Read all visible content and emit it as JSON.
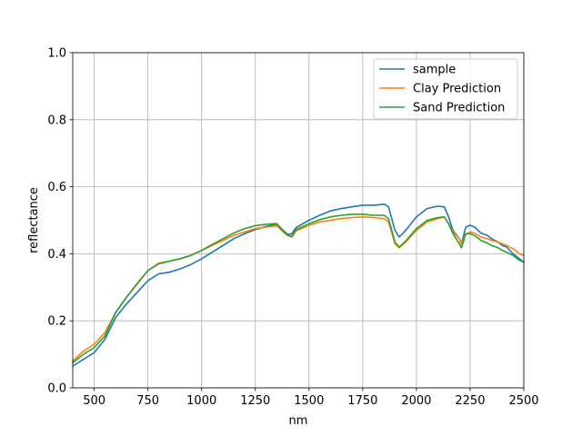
{
  "chart_data": {
    "type": "line",
    "title": "",
    "xlabel": "nm",
    "ylabel": "reflectance",
    "xlim": [
      400,
      2500
    ],
    "ylim": [
      0.0,
      1.0
    ],
    "grid": true,
    "legend_position": "top-right",
    "x_ticks": [
      500,
      750,
      1000,
      1250,
      1500,
      1750,
      2000,
      2250,
      2500
    ],
    "x_tick_labels": [
      "500",
      "750",
      "1000",
      "1250",
      "1500",
      "1750",
      "2000",
      "2250",
      "2500"
    ],
    "y_ticks": [
      0.0,
      0.2,
      0.4,
      0.6,
      0.8,
      1.0
    ],
    "y_tick_labels": [
      "0.0",
      "0.2",
      "0.4",
      "0.6",
      "0.8",
      "1.0"
    ],
    "x": [
      400,
      450,
      500,
      550,
      600,
      650,
      700,
      750,
      800,
      850,
      900,
      950,
      1000,
      1050,
      1100,
      1150,
      1200,
      1250,
      1300,
      1350,
      1380,
      1400,
      1420,
      1440,
      1500,
      1550,
      1600,
      1650,
      1700,
      1750,
      1800,
      1850,
      1870,
      1900,
      1920,
      1950,
      2000,
      2050,
      2100,
      2130,
      2150,
      2170,
      2200,
      2210,
      2230,
      2250,
      2270,
      2300,
      2330,
      2350,
      2380,
      2400,
      2420,
      2450,
      2480,
      2500
    ],
    "series": [
      {
        "name": "sample",
        "color": "#1f77b4",
        "values": [
          0.065,
          0.085,
          0.105,
          0.145,
          0.21,
          0.25,
          0.285,
          0.32,
          0.34,
          0.345,
          0.355,
          0.368,
          0.385,
          0.405,
          0.425,
          0.445,
          0.46,
          0.472,
          0.482,
          0.488,
          0.47,
          0.458,
          0.46,
          0.478,
          0.5,
          0.515,
          0.528,
          0.535,
          0.54,
          0.545,
          0.545,
          0.548,
          0.54,
          0.47,
          0.45,
          0.47,
          0.51,
          0.535,
          0.542,
          0.54,
          0.51,
          0.47,
          0.445,
          0.43,
          0.48,
          0.485,
          0.48,
          0.462,
          0.455,
          0.445,
          0.435,
          0.425,
          0.42,
          0.4,
          0.385,
          0.375
        ]
      },
      {
        "name": "Clay Prediction",
        "color": "#ff7f0e",
        "values": [
          0.08,
          0.11,
          0.13,
          0.165,
          0.225,
          0.27,
          0.31,
          0.35,
          0.372,
          0.378,
          0.385,
          0.395,
          0.41,
          0.425,
          0.44,
          0.455,
          0.465,
          0.475,
          0.48,
          0.483,
          0.465,
          0.455,
          0.45,
          0.468,
          0.485,
          0.495,
          0.5,
          0.505,
          0.508,
          0.51,
          0.508,
          0.505,
          0.495,
          0.43,
          0.418,
          0.435,
          0.47,
          0.495,
          0.505,
          0.51,
          0.49,
          0.465,
          0.445,
          0.43,
          0.458,
          0.465,
          0.462,
          0.45,
          0.445,
          0.44,
          0.435,
          0.43,
          0.425,
          0.415,
          0.4,
          0.395
        ]
      },
      {
        "name": "Sand Prediction",
        "color": "#2ca02c",
        "values": [
          0.075,
          0.1,
          0.12,
          0.155,
          0.225,
          0.27,
          0.312,
          0.35,
          0.37,
          0.378,
          0.385,
          0.395,
          0.41,
          0.428,
          0.445,
          0.462,
          0.475,
          0.484,
          0.488,
          0.49,
          0.468,
          0.455,
          0.452,
          0.472,
          0.49,
          0.502,
          0.51,
          0.515,
          0.518,
          0.518,
          0.515,
          0.515,
          0.505,
          0.435,
          0.42,
          0.438,
          0.475,
          0.5,
          0.508,
          0.51,
          0.49,
          0.46,
          0.43,
          0.418,
          0.46,
          0.46,
          0.455,
          0.44,
          0.432,
          0.425,
          0.418,
          0.41,
          0.405,
          0.395,
          0.38,
          0.375
        ]
      }
    ]
  }
}
